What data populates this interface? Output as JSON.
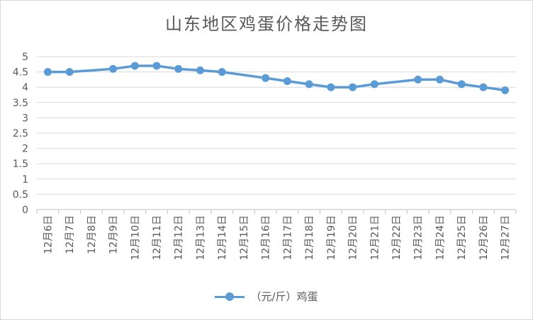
{
  "chart_data": {
    "type": "line",
    "title": "山东地区鸡蛋价格走势图",
    "categories": [
      "12月6日",
      "12月7日",
      "12月8日",
      "12月9日",
      "12月10日",
      "12月11日",
      "12月12日",
      "12月13日",
      "12月14日",
      "12月15日",
      "12月16日",
      "12月17日",
      "12月18日",
      "12月19日",
      "12月20日",
      "12月21日",
      "12月22日",
      "12月23日",
      "12月24日",
      "12月25日",
      "12月26日",
      "12月27日"
    ],
    "series": [
      {
        "name": "（元/斤）鸡蛋",
        "color": "#5b9bd5",
        "values": [
          4.5,
          4.5,
          null,
          4.6,
          4.7,
          4.7,
          4.6,
          4.55,
          4.5,
          null,
          4.3,
          4.2,
          4.1,
          4.0,
          4.0,
          4.1,
          null,
          4.25,
          4.25,
          4.1,
          4.0,
          3.9
        ]
      }
    ],
    "yticks": [
      "0",
      "0.5",
      "1",
      "1.5",
      "2",
      "2.5",
      "3",
      "3.5",
      "4",
      "4.5",
      "5"
    ],
    "ylim": [
      0,
      5
    ],
    "grid": true,
    "legend_position": "bottom"
  }
}
